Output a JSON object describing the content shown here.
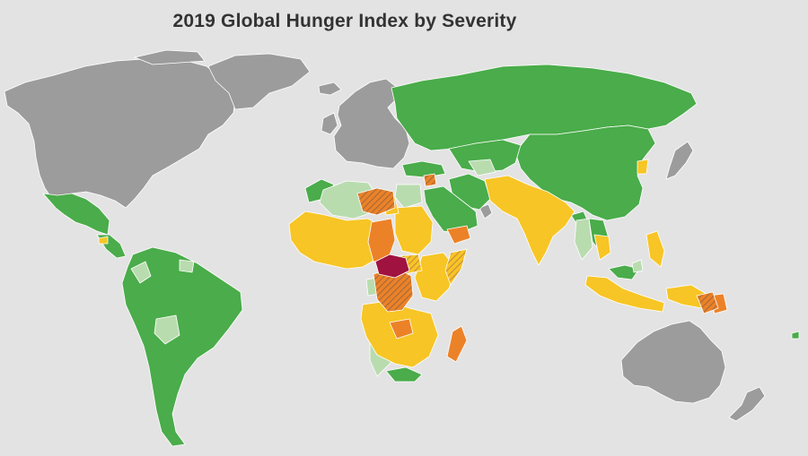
{
  "title": "2019 Global Hunger Index by Severity",
  "colors": {
    "background": "#e3e3e3",
    "no_data": "#9c9c9c",
    "low": "#4aac4a",
    "moderate": "#b9dcaf",
    "serious": "#f7c525",
    "alarming": "#ec8227",
    "extremely_alarming": "#a0123f",
    "provisional_hatch": "#b77a45"
  }
}
